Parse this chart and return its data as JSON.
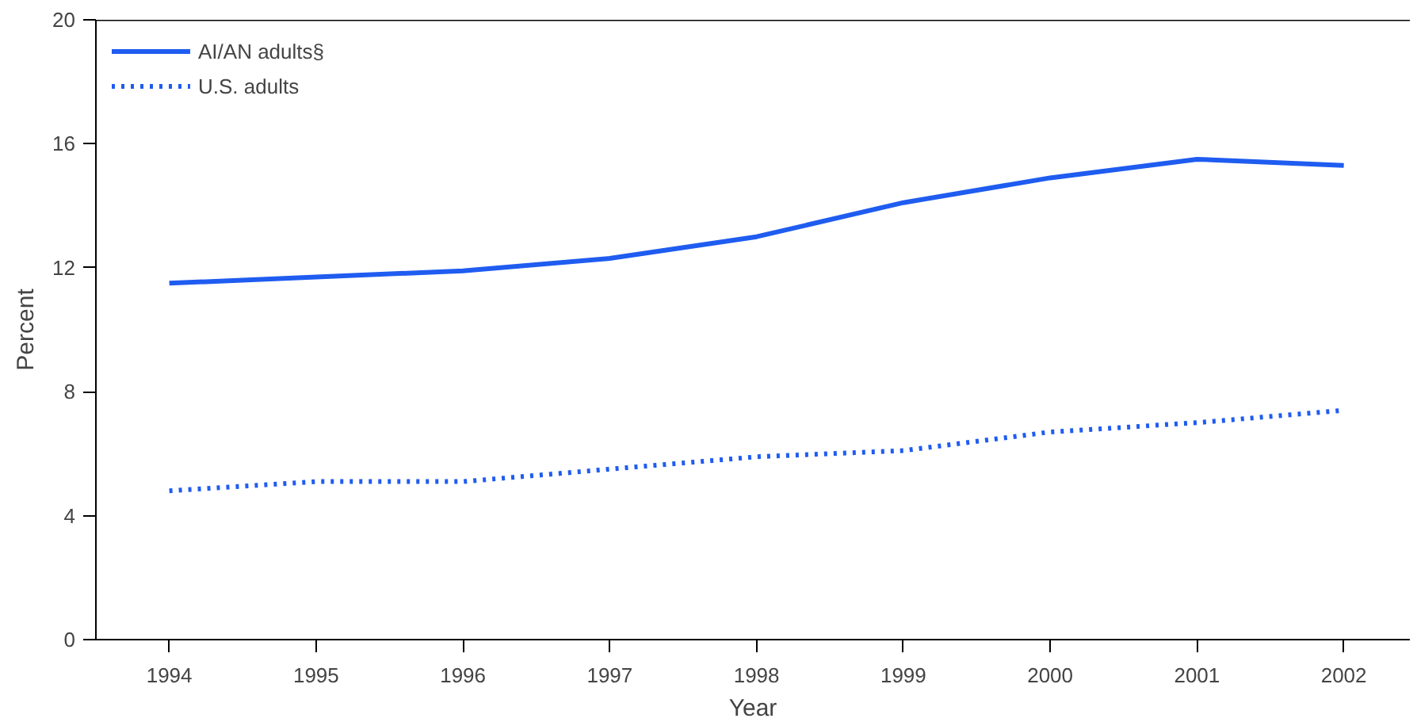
{
  "chart_data": {
    "type": "line",
    "xlabel": "Year",
    "ylabel": "Percent",
    "x": [
      1994,
      1995,
      1996,
      1997,
      1998,
      1999,
      2000,
      2001,
      2002
    ],
    "series": [
      {
        "name": "AI/AN adults§",
        "color": "#1f5cf0",
        "line_style": "solid",
        "values": [
          11.5,
          11.7,
          11.9,
          12.3,
          13.0,
          14.1,
          14.9,
          15.5,
          15.3
        ]
      },
      {
        "name": "U.S. adults",
        "color": "#1f5cf0",
        "line_style": "dotted",
        "values": [
          4.8,
          5.1,
          5.1,
          5.5,
          5.9,
          6.1,
          6.7,
          7.0,
          7.4
        ]
      }
    ],
    "xlim": [
      1993.5,
      2002.45
    ],
    "ylim": [
      0,
      20
    ],
    "xticks": [
      1994,
      1995,
      1996,
      1997,
      1998,
      1999,
      2000,
      2001,
      2002
    ],
    "yticks": [
      0,
      4,
      8,
      12,
      16,
      20
    ],
    "grid": false,
    "legend": "top left",
    "marker": "none"
  }
}
